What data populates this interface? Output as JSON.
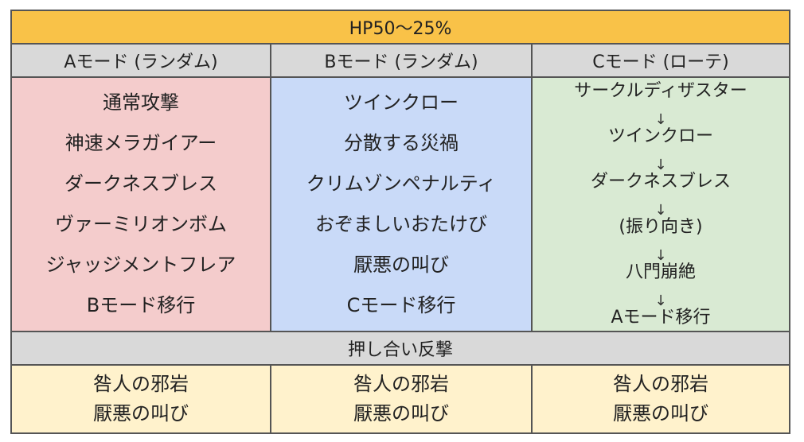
{
  "title": "HP50～25%",
  "modes": [
    {
      "header": "Aモード (ランダム)",
      "moves": [
        "通常攻撃",
        "神速メラガイアー",
        "ダークネスブレス",
        "ヴァーミリオンボム",
        "ジャッジメントフレア",
        "Bモード移行"
      ],
      "background": "#f4cccc"
    },
    {
      "header": "Bモード (ランダム)",
      "moves": [
        "ツインクロー",
        "分散する災禍",
        "クリムゾンペナルティ",
        "おぞましいおたけび",
        "厭悪の叫び",
        "Cモード移行"
      ],
      "background": "#c9daf8"
    },
    {
      "header": "Cモード (ローテ)",
      "moves": [
        "サークルディザスター",
        "ツインクロー",
        "ダークネスブレス",
        "(振り向き)",
        "八門崩絶",
        "Aモード移行"
      ],
      "arrow": "↓",
      "background": "#d9ead3"
    }
  ],
  "pushback": {
    "label": "押し合い反撃",
    "columns": [
      [
        "咎人の邪岩",
        "厭悪の叫び"
      ],
      [
        "咎人の邪岩",
        "厭悪の叫び"
      ],
      [
        "咎人の邪岩",
        "厭悪の叫び"
      ]
    ]
  },
  "colors": {
    "title_bg": "#f9c248",
    "header_bg": "#d9d9d9",
    "pushback_moves_bg": "#fff2cc",
    "border": "#555555"
  }
}
